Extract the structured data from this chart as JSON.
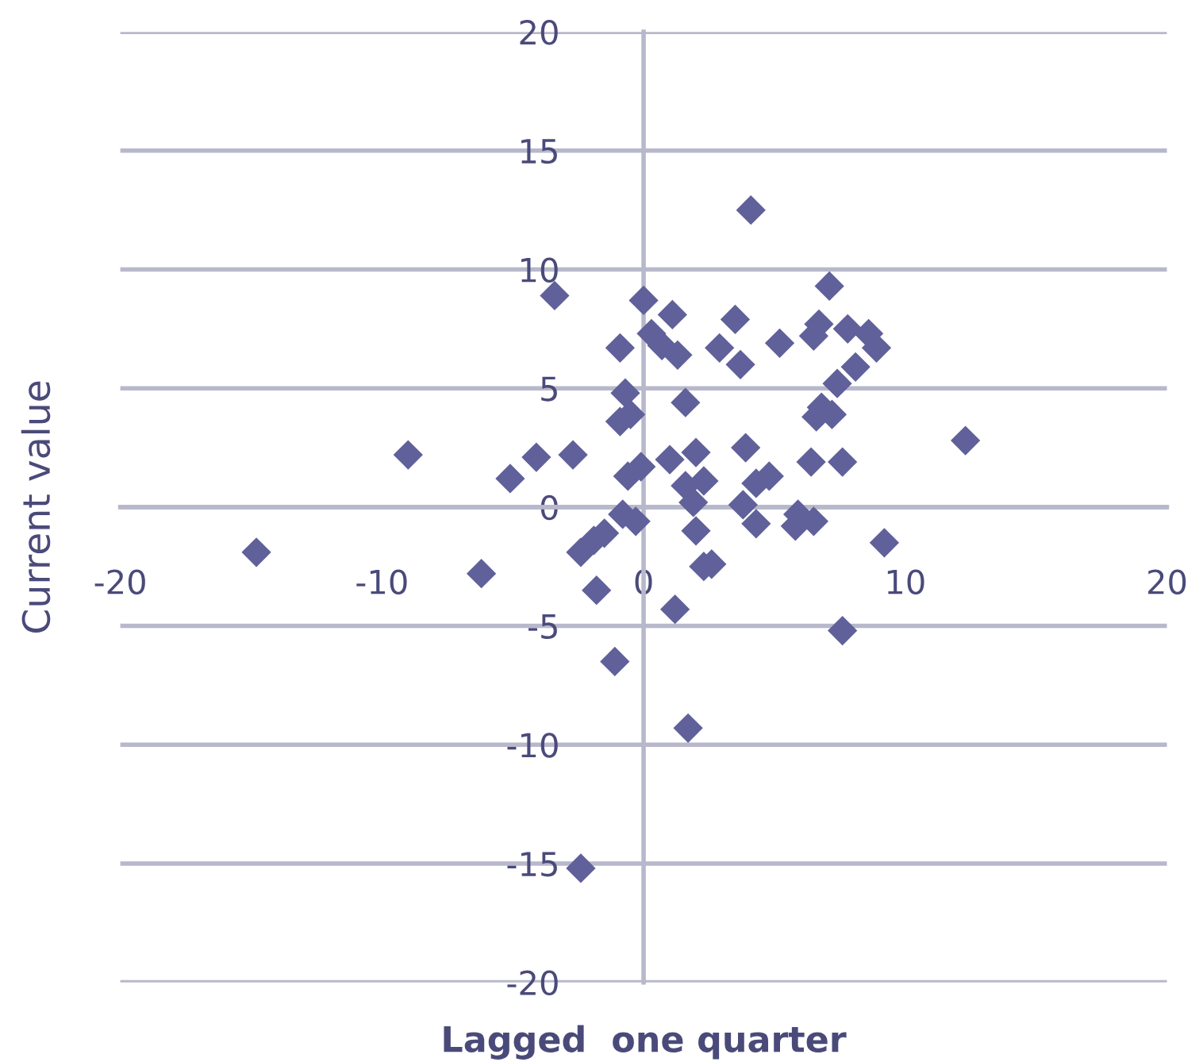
{
  "chart_data": {
    "type": "scatter",
    "xlabel": "Lagged  one quarter",
    "ylabel": "Current value",
    "xlim": [
      -20,
      20
    ],
    "xticks": [
      -20,
      -10,
      0,
      10,
      20
    ],
    "ylim": [
      -20,
      20
    ],
    "yticks": [
      -20,
      -15,
      -10,
      -5,
      0,
      5,
      10,
      15,
      20
    ],
    "grid": "y",
    "marker": "diamond",
    "series": [
      {
        "color": "#60609a",
        "x": [
          4.1,
          7.1,
          -3.4,
          0.0,
          1.1,
          3.5,
          6.7,
          7.8,
          8.6,
          6.5,
          0.3,
          -0.9,
          2.9,
          5.2,
          0.7,
          1.3,
          8.9,
          3.7,
          8.1,
          7.4,
          -0.7,
          1.6,
          6.8,
          7.2,
          6.6,
          -0.5,
          -0.9,
          12.3,
          -9.0,
          -4.1,
          -2.7,
          3.9,
          2.0,
          1.0,
          6.4,
          7.6,
          -5.1,
          -0.1,
          -0.6,
          4.8,
          4.3,
          2.3,
          1.6,
          1.9,
          3.8,
          -0.8,
          -0.3,
          5.9,
          6.5,
          5.8,
          4.3,
          2.0,
          9.2,
          -1.5,
          -1.9,
          -2.4,
          -14.8,
          2.3,
          2.6,
          -6.2,
          -1.8,
          1.2,
          7.6,
          -1.1,
          1.7,
          -2.4
        ],
        "values": [
          12.5,
          9.3,
          8.9,
          8.7,
          8.1,
          7.9,
          7.7,
          7.5,
          7.3,
          7.2,
          7.3,
          6.7,
          6.7,
          6.9,
          6.8,
          6.4,
          6.7,
          6.0,
          5.9,
          5.2,
          4.8,
          4.4,
          4.2,
          3.9,
          3.8,
          3.9,
          3.6,
          2.8,
          2.2,
          2.1,
          2.2,
          2.5,
          2.3,
          2.0,
          1.9,
          1.9,
          1.2,
          1.7,
          1.3,
          1.3,
          1.0,
          1.1,
          0.9,
          0.2,
          0.1,
          -0.3,
          -0.6,
          -0.3,
          -0.6,
          -0.8,
          -0.7,
          -1.0,
          -1.5,
          -1.1,
          -1.4,
          -1.9,
          -1.9,
          -2.5,
          -2.4,
          -2.8,
          -3.5,
          -4.3,
          -5.2,
          -6.5,
          -9.3,
          -15.2
        ]
      }
    ]
  }
}
